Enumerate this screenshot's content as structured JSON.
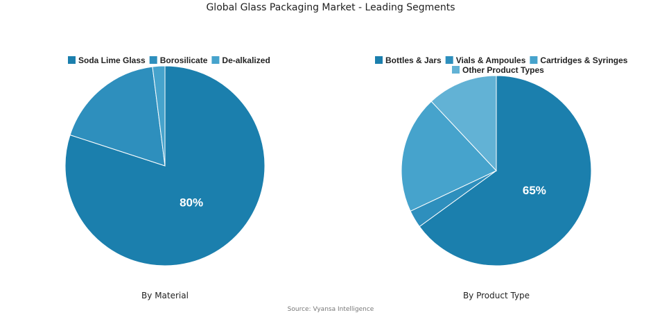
{
  "title": "Global Glass Packaging Market - Leading Segments",
  "source": "Source: Vyansa Intelligence",
  "chart_data": [
    {
      "type": "pie",
      "caption": "By Material",
      "slices": [
        {
          "label": "Soda Lime Glass",
          "value": 80,
          "color": "#1b7fad",
          "display_label": "80%"
        },
        {
          "label": "Borosilicate",
          "value": 18,
          "color": "#2e8fbd",
          "display_label": ""
        },
        {
          "label": "De-alkalized",
          "value": 2,
          "color": "#46a3cc",
          "display_label": ""
        }
      ],
      "legend_position": "top"
    },
    {
      "type": "pie",
      "caption": "By Product Type",
      "slices": [
        {
          "label": "Bottles & Jars",
          "value": 65,
          "color": "#1b7fad",
          "display_label": "65%"
        },
        {
          "label": "Vials & Ampoules",
          "value": 3,
          "color": "#2e8fbd",
          "display_label": ""
        },
        {
          "label": "Cartridges & Syringes",
          "value": 20,
          "color": "#46a3cc",
          "display_label": ""
        },
        {
          "label": "Other Product Types",
          "value": 12,
          "color": "#62b2d5",
          "display_label": ""
        }
      ],
      "legend_position": "top"
    }
  ]
}
